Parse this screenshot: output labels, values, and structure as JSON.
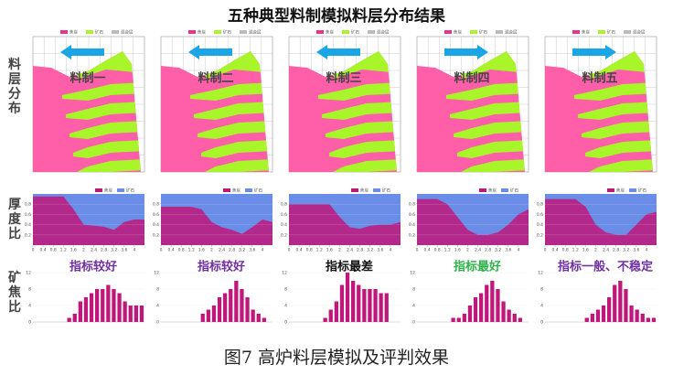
{
  "title": "五种典型料制模拟料层分布结果",
  "caption": "图7 高炉料层模拟及评判效果",
  "row_labels": [
    "料层分布",
    "厚度比",
    "矿焦比"
  ],
  "layer_legend": [
    "焦炭",
    "矿石",
    "混合层"
  ],
  "thickness_legend": [
    "焦炭",
    "矿石"
  ],
  "thickness_axis": {
    "x": [
      0,
      0.4,
      0.8,
      1.2,
      1.6,
      2,
      2.4,
      2.8,
      3.2,
      3.6,
      4,
      4.4
    ],
    "xlim": [
      0,
      4.4
    ],
    "xticks": [
      0,
      0.4,
      0.8,
      1.2,
      1.6,
      2,
      2.4,
      2.8,
      3.2,
      3.6,
      4
    ],
    "ylim": [
      0,
      1
    ],
    "yticks": [
      0.2,
      0.4,
      0.6,
      0.8
    ]
  },
  "hist_axis": {
    "ylim": [
      0,
      12
    ],
    "yticks": [
      0,
      4,
      8,
      12
    ]
  },
  "panels": [
    {
      "name": "料制一",
      "arrow": "left",
      "rating": "指标较好",
      "rating_color": "#7030a0",
      "thickness": [
        0.95,
        0.95,
        0.95,
        0.95,
        0.7,
        0.4,
        0.38,
        0.36,
        0.3,
        0.45,
        0.5,
        0.5
      ],
      "hist": [
        0,
        0,
        0,
        0,
        0,
        0,
        1,
        2,
        5,
        6,
        7,
        8,
        8,
        9,
        8,
        7,
        5,
        4,
        4,
        4
      ]
    },
    {
      "name": "料制二",
      "arrow": "left",
      "rating": "指标较好",
      "rating_color": "#7030a0",
      "thickness": [
        0.75,
        0.75,
        0.75,
        0.75,
        0.7,
        0.45,
        0.35,
        0.3,
        0.22,
        0.35,
        0.5,
        0.45
      ],
      "hist": [
        0,
        0,
        0,
        0,
        0,
        0,
        0,
        2,
        3,
        4,
        6,
        7,
        8,
        10,
        8,
        6,
        3,
        2,
        1,
        0
      ]
    },
    {
      "name": "料制三",
      "arrow": "left",
      "rating": "指标最差",
      "rating_color": "#111111",
      "thickness": [
        0.8,
        0.8,
        0.8,
        0.8,
        0.8,
        0.55,
        0.35,
        0.32,
        0.38,
        0.4,
        0.4,
        0.45
      ],
      "hist": [
        0,
        0,
        0,
        0,
        0,
        0,
        1,
        3,
        5,
        9,
        12,
        10,
        9,
        8,
        8,
        8,
        7,
        7,
        0,
        0
      ]
    },
    {
      "name": "料制四",
      "arrow": "right",
      "rating": "指标最好",
      "rating_color": "#2fb24a",
      "thickness": [
        0.9,
        0.9,
        0.9,
        0.8,
        0.55,
        0.3,
        0.2,
        0.2,
        0.25,
        0.4,
        0.6,
        0.7
      ],
      "hist": [
        0,
        0,
        0,
        0,
        0,
        0,
        1,
        1,
        2,
        4,
        6,
        7,
        9,
        10,
        8,
        5,
        3,
        2,
        1,
        0
      ]
    },
    {
      "name": "料制五",
      "arrow": "right",
      "rating": "指标一般、不稳定",
      "rating_color": "#7030a0",
      "thickness": [
        0.9,
        0.9,
        0.9,
        0.9,
        0.75,
        0.4,
        0.25,
        0.2,
        0.2,
        0.4,
        0.6,
        0.65
      ],
      "hist": [
        0,
        0,
        0,
        0,
        0,
        0,
        0,
        1,
        2,
        3,
        4,
        6,
        9,
        10,
        8,
        4,
        3,
        2,
        1,
        1
      ]
    }
  ]
}
